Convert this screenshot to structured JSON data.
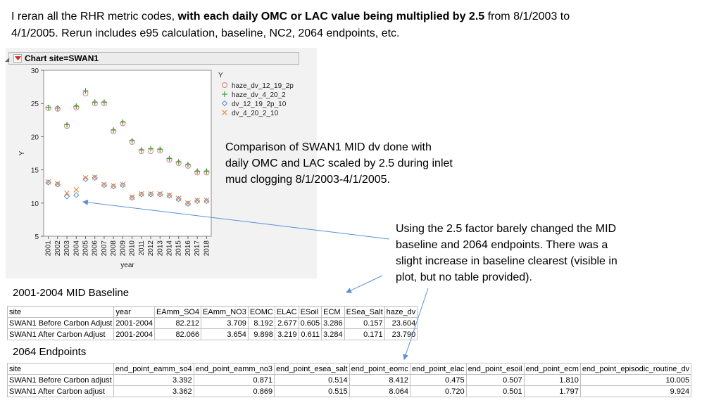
{
  "intro": {
    "part1": "I reran all the RHR metric codes, ",
    "bold": "with each daily OMC or LAC value being multiplied by 2.5",
    "part2": " from 8/1/2003 to 4/1/2005.  Rerun includes e95 calculation, baseline, NC2, 2064 endpoints, etc."
  },
  "chart_panel": {
    "header": "Chart site=SWAN1"
  },
  "chart_data": {
    "type": "scatter",
    "title": "",
    "xlabel": "year",
    "ylabel": "Y",
    "legend_title": "Y",
    "legend_position": "top-right",
    "ylim": [
      5,
      30
    ],
    "yticks": [
      5,
      10,
      15,
      20,
      25,
      30
    ],
    "x": [
      2001,
      2002,
      2003,
      2004,
      2005,
      2006,
      2007,
      2008,
      2009,
      2010,
      2011,
      2012,
      2013,
      2014,
      2015,
      2016,
      2017,
      2018
    ],
    "series": [
      {
        "name": "haze_dv_12_19_2p",
        "marker": "circle",
        "color": "#e07b7b",
        "values": [
          24.3,
          24.2,
          21.6,
          24.4,
          26.5,
          25.0,
          25.0,
          20.8,
          22.0,
          19.2,
          17.8,
          17.8,
          17.9,
          16.5,
          16.0,
          15.6,
          14.6,
          14.6
        ]
      },
      {
        "name": "haze_dv_4_20_2",
        "marker": "plus",
        "color": "#3f9a3f",
        "values": [
          24.4,
          24.3,
          21.8,
          24.6,
          26.9,
          25.2,
          25.2,
          21.0,
          22.2,
          19.4,
          18.0,
          18.2,
          18.1,
          16.7,
          16.2,
          15.8,
          14.8,
          14.8
        ]
      },
      {
        "name": "dv_12_19_2p_10",
        "marker": "diamond",
        "color": "#5b8fd6",
        "values": [
          13.1,
          12.8,
          11.0,
          11.2,
          13.6,
          13.8,
          12.7,
          12.5,
          12.7,
          10.8,
          11.3,
          11.3,
          11.3,
          11.1,
          10.6,
          9.9,
          10.3,
          10.3
        ]
      },
      {
        "name": "dv_4_20_2_10",
        "marker": "x",
        "color": "#e8843c",
        "values": [
          13.2,
          12.9,
          11.5,
          12.0,
          13.8,
          13.9,
          12.8,
          12.6,
          12.8,
          10.9,
          11.4,
          11.4,
          11.4,
          11.2,
          10.7,
          10.0,
          10.4,
          10.4
        ]
      }
    ]
  },
  "notes": {
    "note1": "Comparison of SWAN1 MID dv done with daily OMC and LAC scaled by 2.5 during inlet mud clogging 8/1/2003-4/1/2005.",
    "note2": "Using the 2.5 factor barely changed the MID baseline and 2064 endpoints.  There was a slight increase in baseline clearest (visible in plot, but no table provided)."
  },
  "baseline": {
    "title": "2001-2004 MID Baseline",
    "headers": [
      "site",
      "year",
      "EAmm_SO4",
      "EAmm_NO3",
      "EOMC",
      "ELAC",
      "ESoil",
      "ECM",
      "ESea_Salt",
      "haze_dv"
    ],
    "rows": [
      [
        "SWAN1 Before Carbon Adjust",
        "2001-2004",
        "82.212",
        "3.709",
        "8.192",
        "2.677",
        "0.605",
        "3.286",
        "0.157",
        "23.604"
      ],
      [
        "SWAN1 After Carbon Adjust",
        "2001-2004",
        "82.066",
        "3.654",
        "9.898",
        "3.219",
        "0.611",
        "3.284",
        "0.171",
        "23.790"
      ]
    ]
  },
  "endpoints": {
    "title": "2064 Endpoints",
    "headers": [
      "site",
      "end_point_eamm_so4",
      "end_point_eamm_no3",
      "end_point_esea_salt",
      "end_point_eomc",
      "end_point_elac",
      "end_point_esoil",
      "end_point_ecm",
      "end_point_episodic_routine_dv"
    ],
    "rows": [
      [
        "SWAN1 Before Carbon adjust",
        "3.392",
        "0.871",
        "0.514",
        "8.412",
        "0.475",
        "0.507",
        "1.810",
        "10.005"
      ],
      [
        "SWAN1 After Carbon adjust",
        "3.362",
        "0.869",
        "0.515",
        "8.064",
        "0.720",
        "0.501",
        "1.797",
        "9.924"
      ]
    ]
  }
}
